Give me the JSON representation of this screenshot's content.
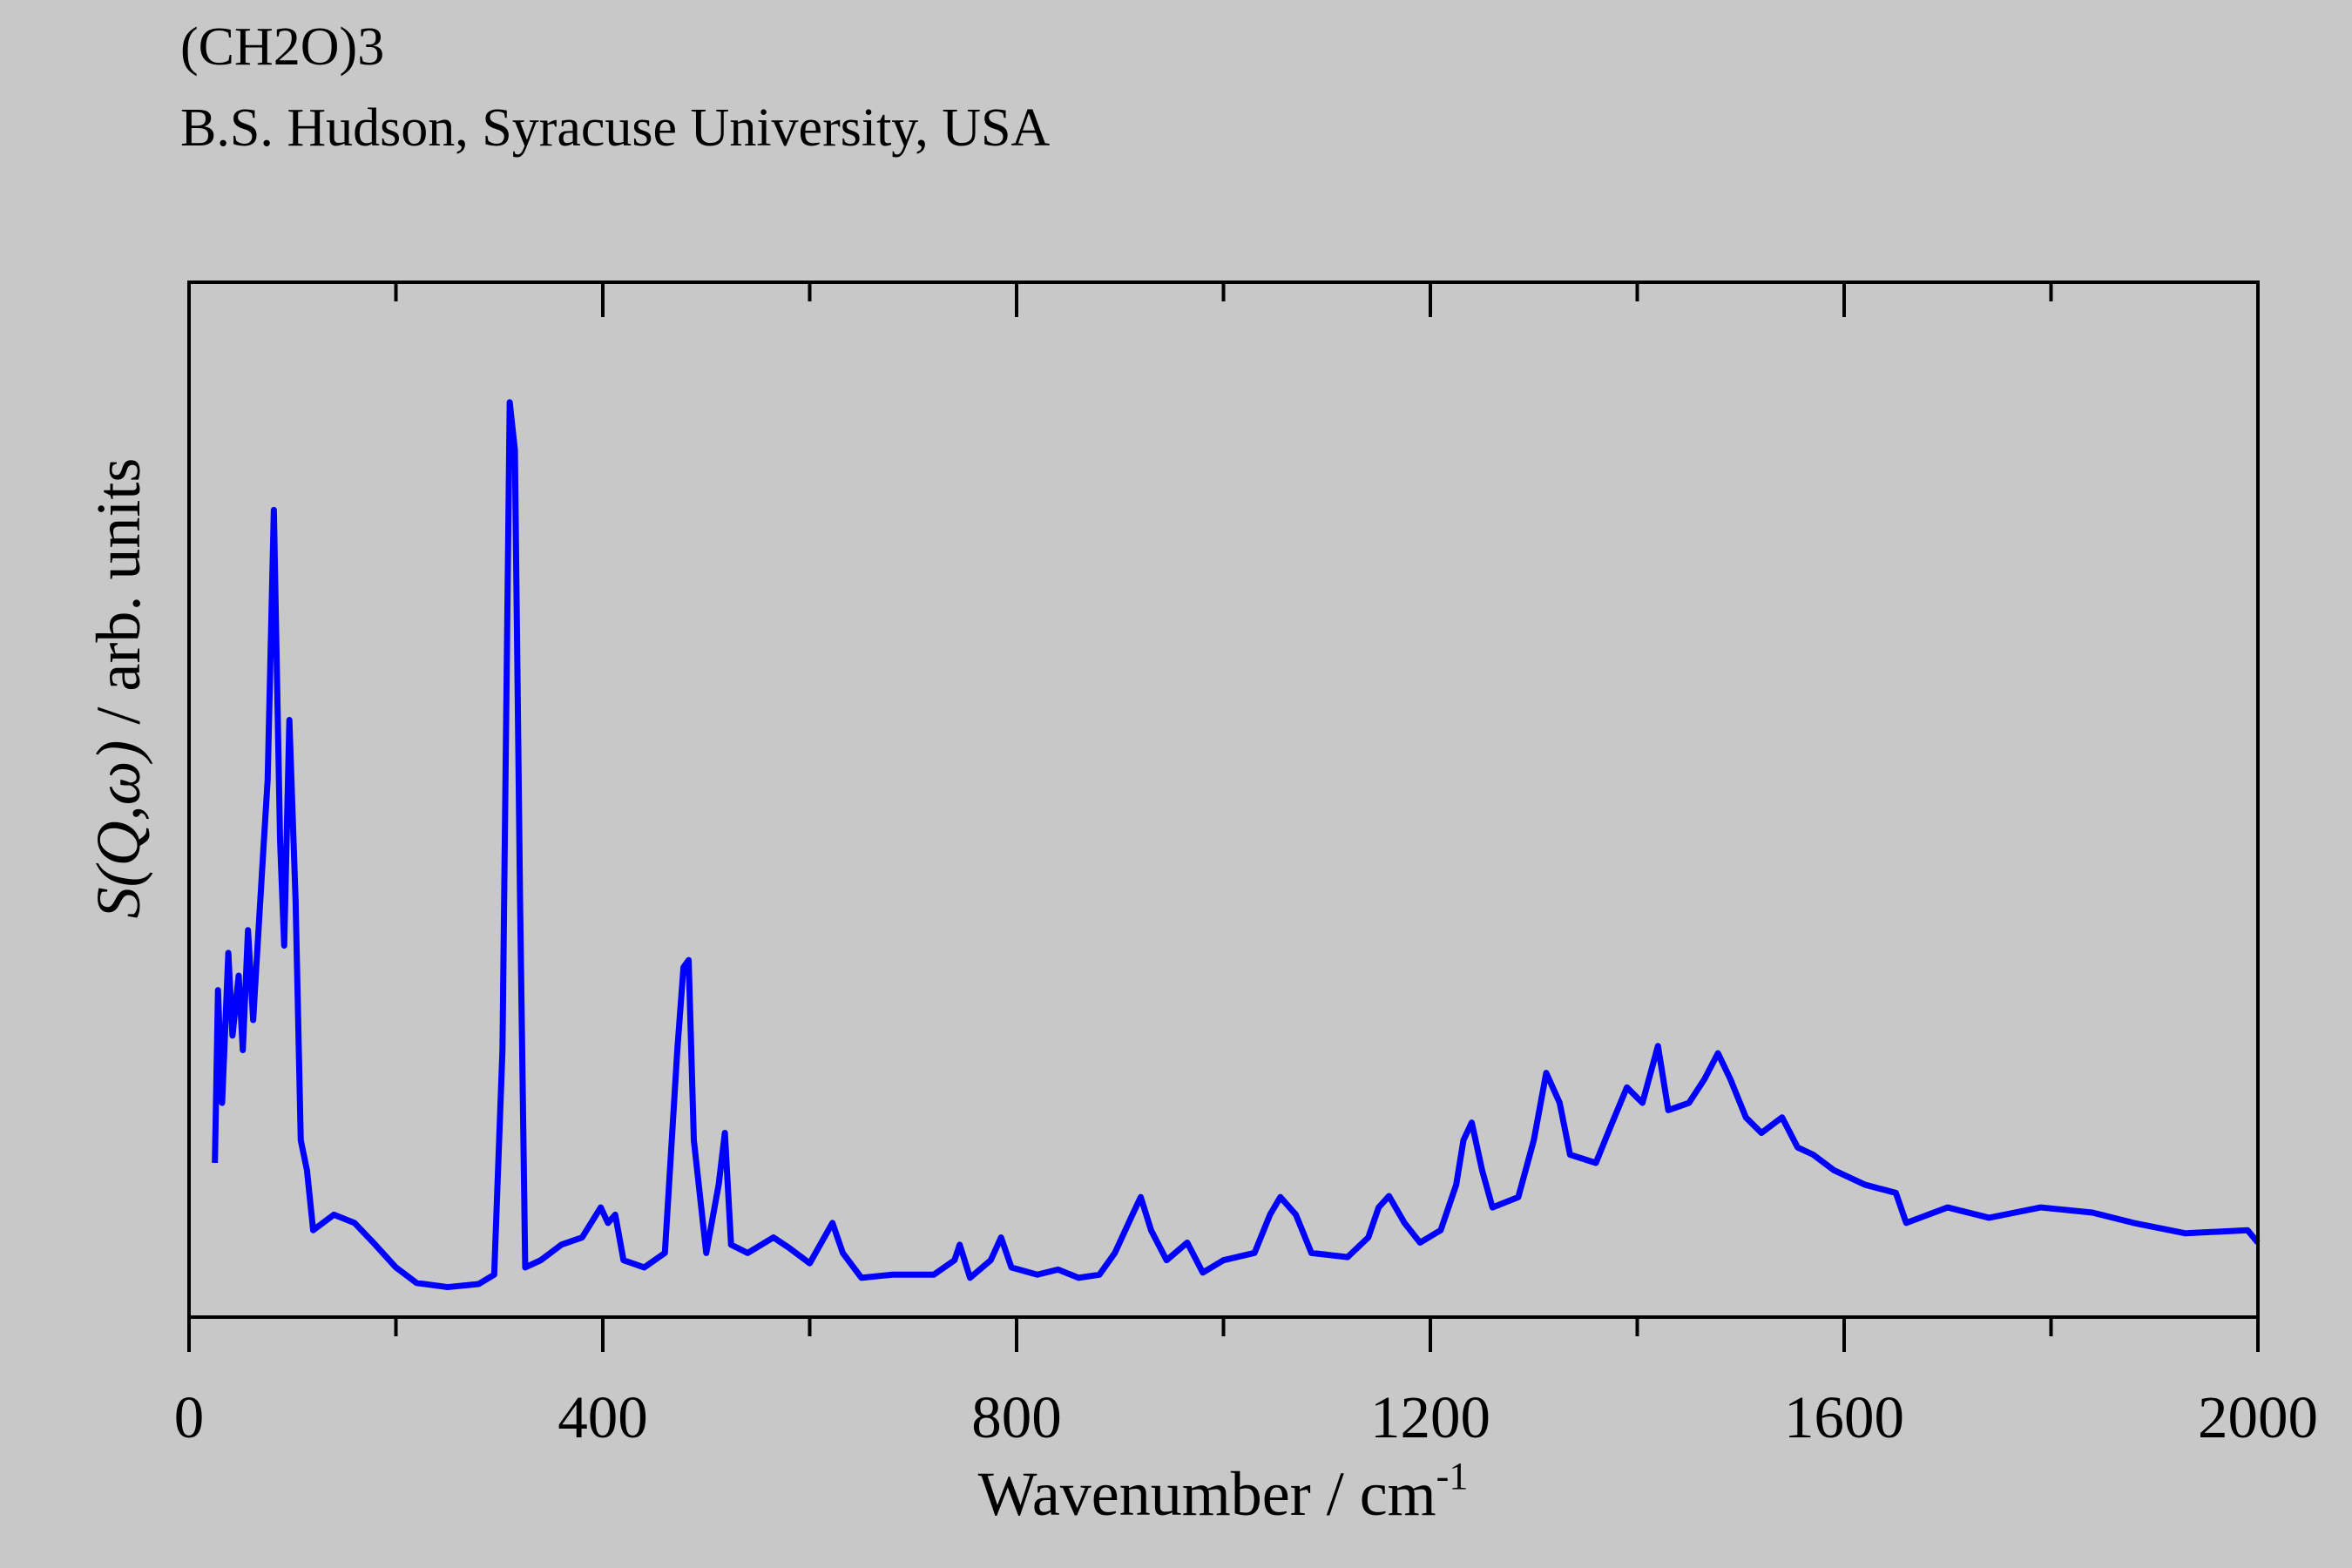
{
  "chart_data": {
    "type": "line",
    "title": "(CH2O)3",
    "subtitle": "B.S. Hudson, Syracuse University, USA",
    "xlabel": {
      "text": "Wavenumber / cm",
      "sup": "-1"
    },
    "ylabel": {
      "italic": "S(Q,ω)",
      "text": " / arb. units"
    },
    "xlim": [
      0,
      2000
    ],
    "ylim": [
      0,
      100
    ],
    "xticks": [
      0,
      400,
      800,
      1200,
      1600,
      2000
    ],
    "xminorticks": [
      200,
      600,
      1000,
      1400,
      1800
    ],
    "series": [
      {
        "color": "#0000ff",
        "x": [
          25,
          28,
          32,
          38,
          42,
          48,
          52,
          57,
          62,
          68,
          72,
          76,
          82,
          88,
          92,
          97,
          103,
          108,
          114,
          120,
          140,
          160,
          180,
          200,
          220,
          250,
          280,
          295,
          303,
          310,
          315,
          320,
          325,
          340,
          360,
          380,
          398,
          405,
          412,
          420,
          440,
          460,
          472,
          478,
          483,
          488,
          500,
          512,
          518,
          524,
          540,
          565,
          580,
          600,
          622,
          632,
          650,
          680,
          720,
          740,
          745,
          755,
          775,
          785,
          795,
          820,
          840,
          860,
          880,
          895,
          912,
          920,
          930,
          945,
          965,
          980,
          1000,
          1030,
          1045,
          1055,
          1070,
          1085,
          1120,
          1140,
          1150,
          1160,
          1175,
          1190,
          1210,
          1225,
          1232,
          1240,
          1250,
          1260,
          1285,
          1300,
          1312,
          1325,
          1335,
          1360,
          1375,
          1390,
          1405,
          1420,
          1430,
          1450,
          1465,
          1478,
          1490,
          1505,
          1520,
          1540,
          1555,
          1570,
          1590,
          1620,
          1650,
          1660,
          1700,
          1740,
          1790,
          1840,
          1880,
          1930,
          1990,
          2000
        ],
        "values": [
          14.9,
          31.6,
          20.7,
          35.2,
          27.2,
          33,
          25.8,
          37.4,
          28.7,
          38.8,
          45.4,
          51.9,
          78,
          46.1,
          35.9,
          57.7,
          40.3,
          17.1,
          14.2,
          8.4,
          9.9,
          9.1,
          7,
          4.8,
          3.3,
          2.9,
          3.2,
          4.1,
          25.8,
          88.4,
          83.8,
          40.3,
          4.8,
          5.5,
          7,
          7.7,
          10.6,
          9.1,
          9.9,
          5.5,
          4.8,
          6.2,
          25.8,
          33.8,
          34.5,
          17.1,
          6.2,
          12.8,
          17.8,
          7,
          6.2,
          7.7,
          6.7,
          5.2,
          9.1,
          6.2,
          3.8,
          4.1,
          4.1,
          5.5,
          7,
          3.8,
          5.5,
          7.7,
          4.8,
          4.1,
          4.6,
          3.8,
          4.1,
          6.2,
          9.9,
          11.6,
          8.4,
          5.5,
          7.2,
          4.3,
          5.5,
          6.2,
          9.9,
          11.6,
          9.9,
          6.2,
          5.8,
          7.7,
          10.6,
          11.7,
          9.1,
          7.2,
          8.4,
          12.8,
          17.1,
          18.8,
          14.2,
          10.6,
          11.6,
          17.1,
          23.6,
          20.7,
          15.7,
          14.9,
          18.6,
          22.2,
          20.7,
          26.2,
          20,
          20.7,
          23,
          25.5,
          23,
          19.3,
          17.8,
          19.3,
          16.4,
          15.7,
          14.2,
          12.8,
          12,
          9.1,
          10.6,
          9.6,
          10.6,
          10.1,
          9.1,
          8.1,
          8.4,
          7.2
        ]
      }
    ]
  }
}
